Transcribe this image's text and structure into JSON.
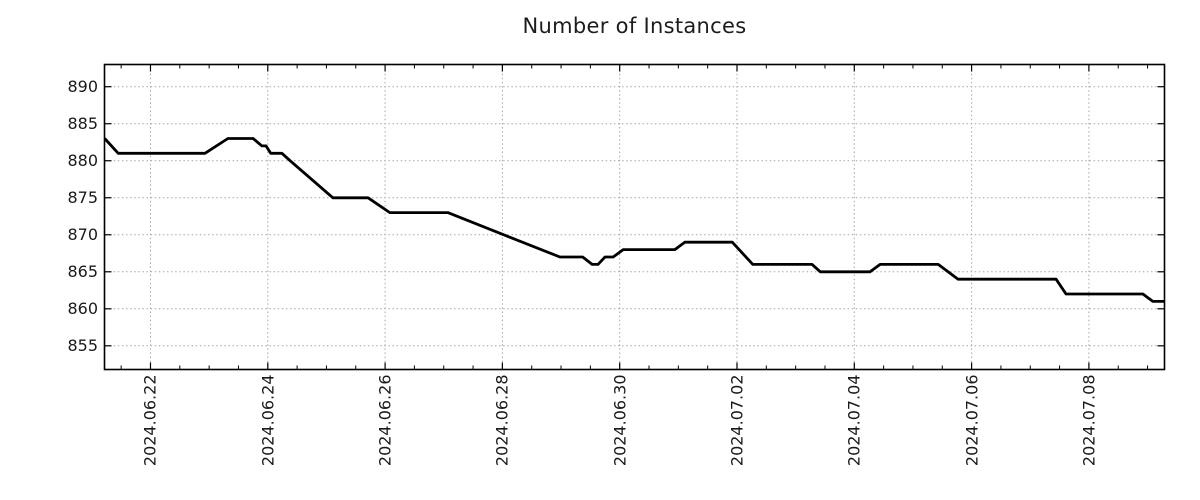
{
  "chart_data": {
    "type": "line",
    "title": "Number of Instances",
    "grid": {
      "style": "dotted",
      "color": "#a6a6a6"
    },
    "line_color": "#000000",
    "x_axis": {
      "unit": "days since 2024-06-22 00:00",
      "range": [
        -0.784,
        17.289
      ],
      "tick_labels": [
        "2024.06.22",
        "2024.06.24",
        "2024.06.26",
        "2024.06.28",
        "2024.06.30",
        "2024.07.02",
        "2024.07.04",
        "2024.07.06",
        "2024.07.08"
      ],
      "major_tick_interval_days": 2,
      "minor_tick_interval_days": 0.5
    },
    "y_axis": {
      "range": [
        851.8,
        893.0
      ],
      "ticks": [
        855,
        860,
        865,
        870,
        875,
        880,
        885,
        890
      ]
    },
    "series": [
      {
        "name": "Number of Instances",
        "points": [
          [
            -0.78,
            883
          ],
          [
            -0.55,
            881
          ],
          [
            0.93,
            881
          ],
          [
            1.32,
            883
          ],
          [
            1.75,
            883
          ],
          [
            1.9,
            882
          ],
          [
            1.97,
            882
          ],
          [
            2.05,
            881
          ],
          [
            2.24,
            881
          ],
          [
            2.38,
            880
          ],
          [
            3.11,
            875
          ],
          [
            3.71,
            875
          ],
          [
            4.08,
            873
          ],
          [
            5.07,
            873
          ],
          [
            6.98,
            867
          ],
          [
            7.37,
            867
          ],
          [
            7.53,
            866
          ],
          [
            7.63,
            866
          ],
          [
            7.75,
            867
          ],
          [
            7.89,
            867
          ],
          [
            8.06,
            868
          ],
          [
            8.94,
            868
          ],
          [
            9.11,
            869
          ],
          [
            9.92,
            869
          ],
          [
            10.27,
            866
          ],
          [
            11.28,
            866
          ],
          [
            11.42,
            865
          ],
          [
            12.27,
            865
          ],
          [
            12.44,
            866
          ],
          [
            13.43,
            866
          ],
          [
            13.77,
            864
          ],
          [
            15.44,
            864
          ],
          [
            15.61,
            862
          ],
          [
            16.92,
            862
          ],
          [
            17.09,
            861
          ],
          [
            17.29,
            861
          ]
        ]
      }
    ]
  }
}
